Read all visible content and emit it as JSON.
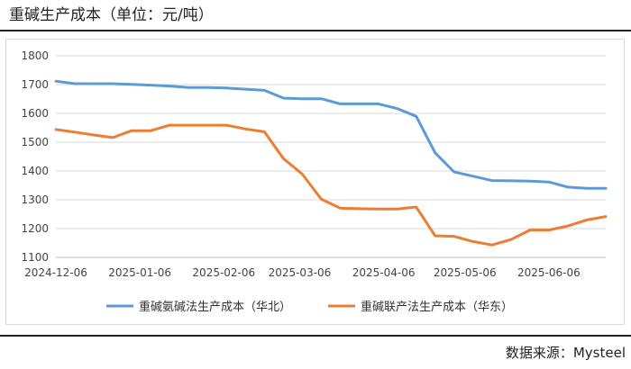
{
  "title": "重碱生产成本（单位：元/吨）",
  "source": "数据来源：Mysteel",
  "chart_data": {
    "type": "line",
    "title": "重碱生产成本（单位：元/吨）",
    "xlabel": "",
    "ylabel": "",
    "ylim": [
      1100,
      1800
    ],
    "yticks": [
      1100,
      1200,
      1300,
      1400,
      1500,
      1600,
      1700,
      1800
    ],
    "grid": true,
    "legend_position": "bottom",
    "x_ticks": [
      "2024-12-06",
      "2025-01-06",
      "2025-02-06",
      "2025-03-06",
      "2025-04-06",
      "2025-05-06",
      "2025-06-06"
    ],
    "x": [
      "2024-12-06",
      "2024-12-13",
      "2024-12-20",
      "2024-12-27",
      "2025-01-03",
      "2025-01-10",
      "2025-01-17",
      "2025-01-24",
      "2025-01-31",
      "2025-02-07",
      "2025-02-14",
      "2025-02-21",
      "2025-02-28",
      "2025-03-07",
      "2025-03-14",
      "2025-03-21",
      "2025-03-28",
      "2025-04-04",
      "2025-04-11",
      "2025-04-18",
      "2025-04-25",
      "2025-05-02",
      "2025-05-09",
      "2025-05-16",
      "2025-05-23",
      "2025-05-30",
      "2025-06-06",
      "2025-06-13",
      "2025-06-20",
      "2025-06-27"
    ],
    "series": [
      {
        "name": "重碱氨碱法生产成本（华北）",
        "color": "#5b9bd5",
        "values": [
          1712,
          1703,
          1703,
          1703,
          1701,
          1698,
          1695,
          1690,
          1690,
          1688,
          1684,
          1680,
          1653,
          1651,
          1651,
          1633,
          1633,
          1633,
          1617,
          1590,
          1463,
          1397,
          1382,
          1367,
          1366,
          1365,
          1362,
          1344,
          1340,
          1340
        ]
      },
      {
        "name": "重碱联产法生产成本（华东）",
        "color": "#ed7d31",
        "values": [
          1544,
          1535,
          1525,
          1516,
          1540,
          1540,
          1559,
          1559,
          1559,
          1559,
          1546,
          1536,
          1443,
          1389,
          1302,
          1271,
          1269,
          1268,
          1268,
          1275,
          1175,
          1173,
          1155,
          1143,
          1162,
          1195,
          1195,
          1209,
          1230,
          1242
        ]
      }
    ]
  }
}
